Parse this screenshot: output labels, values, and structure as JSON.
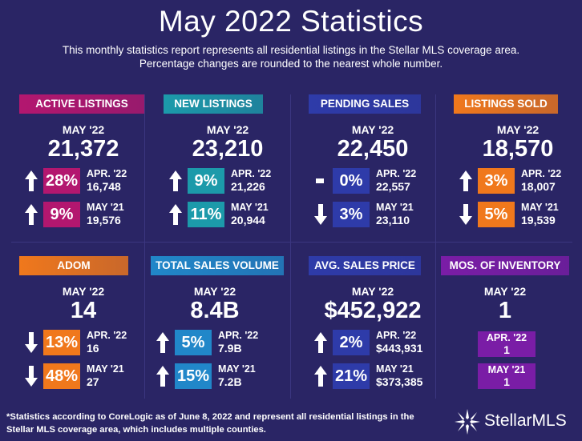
{
  "header": {
    "title": "May 2022 Statistics",
    "subtitle_line1": "This monthly statistics report represents all residential listings in the Stellar MLS coverage area.",
    "subtitle_line2": "Percentage changes are rounded to the nearest whole number."
  },
  "colors": {
    "background": "#2a2565",
    "magenta": "#b3176f",
    "teal": "#1c9aaa",
    "blue": "#2e3ba9",
    "orange": "#f0781c",
    "sky": "#2187c9",
    "purple": "#7a1da6"
  },
  "cards": [
    {
      "label": "ACTIVE LISTINGS",
      "period": "MAY '22",
      "value": "21,372",
      "color": "magenta",
      "rows": [
        {
          "arrow": "up-arrow",
          "pct": "28%",
          "cmp_label": "APR. '22",
          "cmp_value": "16,748"
        },
        {
          "arrow": "up-arrow",
          "pct": "9%",
          "cmp_label": "MAY '21",
          "cmp_value": "19,576"
        }
      ]
    },
    {
      "label": "NEW LISTINGS",
      "period": "MAY '22",
      "value": "23,210",
      "color": "teal",
      "rows": [
        {
          "arrow": "up-arrow",
          "pct": "9%",
          "cmp_label": "APR. '22",
          "cmp_value": "21,226"
        },
        {
          "arrow": "up-arrow",
          "pct": "11%",
          "cmp_label": "MAY '21",
          "cmp_value": "20,944"
        }
      ]
    },
    {
      "label": "PENDING SALES",
      "period": "MAY '22",
      "value": "22,450",
      "color": "blue",
      "rows": [
        {
          "arrow": "dash",
          "pct": "0%",
          "cmp_label": "APR. '22",
          "cmp_value": "22,557"
        },
        {
          "arrow": "down-arrow",
          "pct": "3%",
          "cmp_label": "MAY '21",
          "cmp_value": "23,110"
        }
      ]
    },
    {
      "label": "LISTINGS SOLD",
      "period": "MAY '22",
      "value": "18,570",
      "color": "orange",
      "rows": [
        {
          "arrow": "up-arrow",
          "pct": "3%",
          "cmp_label": "APR. '22",
          "cmp_value": "18,007"
        },
        {
          "arrow": "down-arrow",
          "pct": "5%",
          "cmp_label": "MAY '21",
          "cmp_value": "19,539"
        }
      ]
    },
    {
      "label": "ADOM",
      "period": "MAY '22",
      "value": "14",
      "color": "orange",
      "rows": [
        {
          "arrow": "down-arrow",
          "pct": "13%",
          "cmp_label": "APR. '22",
          "cmp_value": "16"
        },
        {
          "arrow": "down-arrow",
          "pct": "48%",
          "cmp_label": "MAY '21",
          "cmp_value": "27"
        }
      ]
    },
    {
      "label": "TOTAL SALES VOLUME",
      "period": "MAY '22",
      "value": "8.4B",
      "color": "sky",
      "rows": [
        {
          "arrow": "up-arrow",
          "pct": "5%",
          "cmp_label": "APR. '22",
          "cmp_value": "7.9B"
        },
        {
          "arrow": "up-arrow",
          "pct": "15%",
          "cmp_label": "MAY '21",
          "cmp_value": "7.2B"
        }
      ]
    },
    {
      "label": "AVG. SALES PRICE",
      "period": "MAY '22",
      "value": "$452,922",
      "color": "blue",
      "rows": [
        {
          "arrow": "up-arrow",
          "pct": "2%",
          "cmp_label": "APR. '22",
          "cmp_value": "$443,931"
        },
        {
          "arrow": "up-arrow",
          "pct": "21%",
          "cmp_label": "MAY '21",
          "cmp_value": "$373,385"
        }
      ]
    },
    {
      "label": "MOS. OF INVENTORY",
      "period": "MAY '22",
      "value": "1",
      "color": "purple",
      "boxes": [
        {
          "cmp_label": "APR. '22",
          "cmp_value": "1"
        },
        {
          "cmp_label": "MAY '21",
          "cmp_value": "1"
        }
      ]
    }
  ],
  "footer": {
    "note_line1": "*Statistics according to CoreLogic as of June 8, 2022 and represent all residential listings in the",
    "note_line2": "Stellar MLS coverage area, which includes multiple counties.",
    "logo_text": "StellarMLS",
    "logo_icon": "star-burst-icon"
  }
}
